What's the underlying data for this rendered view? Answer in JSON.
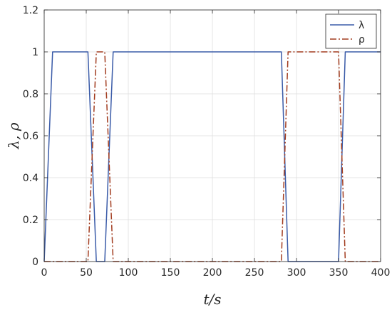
{
  "chart_data": {
    "type": "line",
    "xlabel": "t/s",
    "ylabel": "λ, ρ",
    "xlim": [
      0,
      400
    ],
    "ylim": [
      0,
      1.2
    ],
    "xticks": [
      0,
      50,
      100,
      150,
      200,
      250,
      300,
      350,
      400
    ],
    "yticks": [
      0,
      0.2,
      0.4,
      0.6,
      0.8,
      1,
      1.2
    ],
    "grid": true,
    "legend_position": "top-right",
    "series": [
      {
        "name": "λ",
        "color": "#3a5ba8",
        "style": "solid",
        "x": [
          0,
          10,
          52,
          62,
          72,
          82,
          282,
          290,
          350,
          358,
          400
        ],
        "y": [
          0,
          1,
          1,
          0,
          0,
          1,
          1,
          0,
          0,
          1,
          1
        ]
      },
      {
        "name": "ρ",
        "color": "#a23c1f",
        "style": "dashdot",
        "x": [
          0,
          52,
          62,
          72,
          82,
          282,
          290,
          350,
          358,
          400
        ],
        "y": [
          0,
          0,
          1,
          1,
          0,
          0,
          1,
          1,
          0,
          0
        ]
      }
    ]
  }
}
